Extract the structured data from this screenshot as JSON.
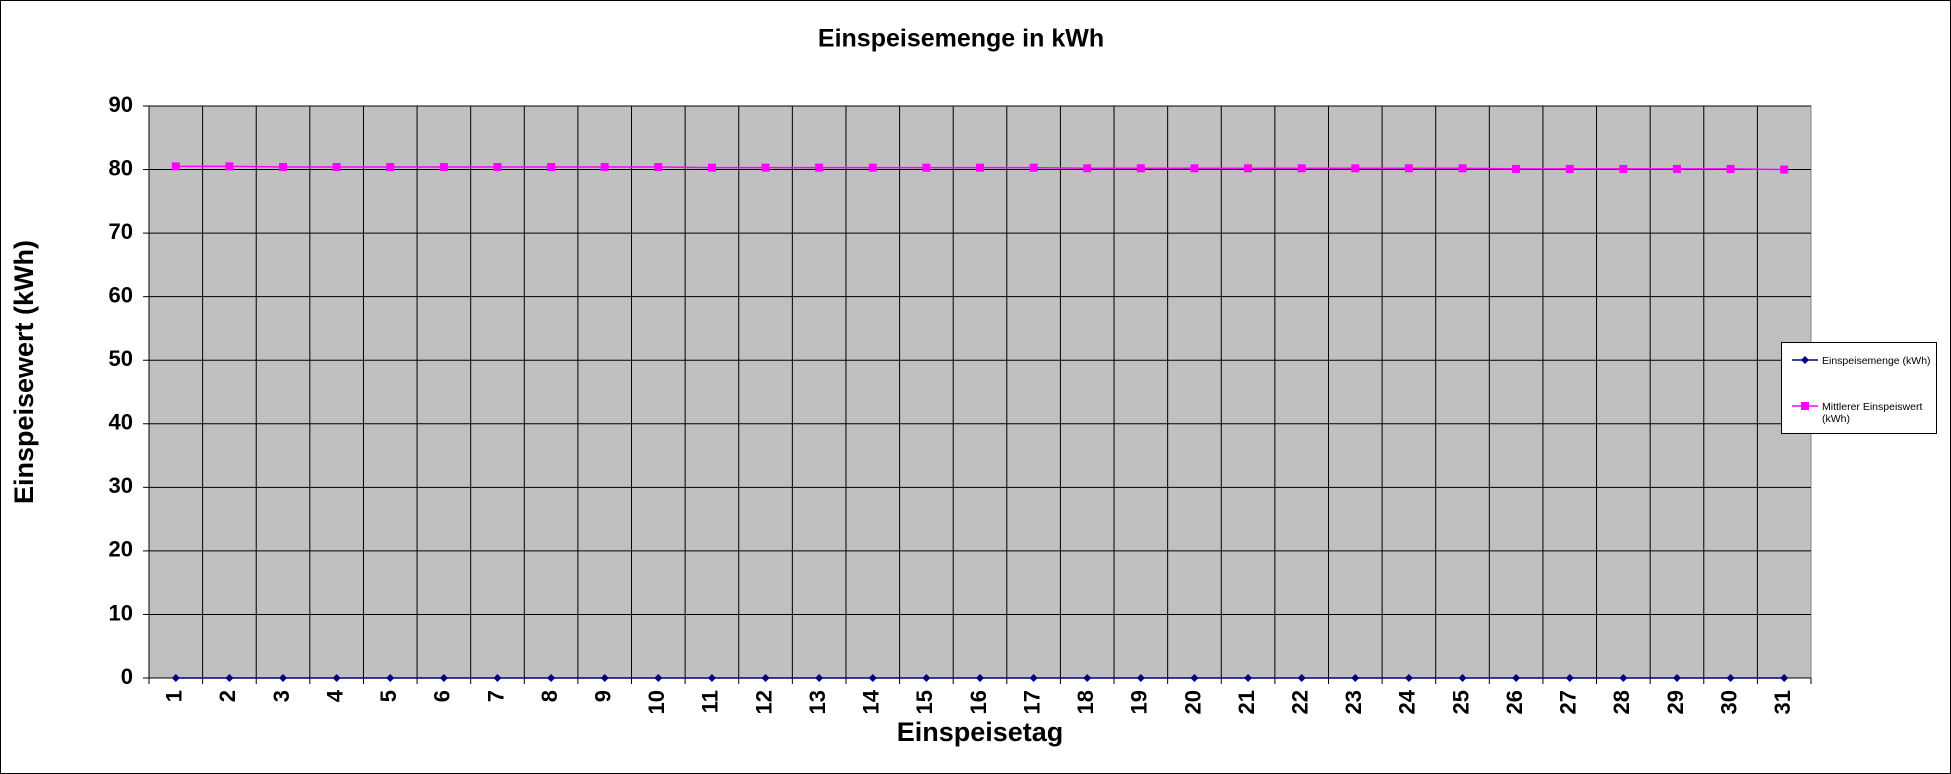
{
  "chart_data": {
    "type": "line",
    "title": "Einspeisemenge in kWh",
    "xlabel": "Einspeisetag",
    "ylabel": "Einspeisewert  (kWh)",
    "categories": [
      "1",
      "2",
      "3",
      "4",
      "5",
      "6",
      "7",
      "8",
      "9",
      "10",
      "11",
      "12",
      "13",
      "14",
      "15",
      "16",
      "17",
      "18",
      "19",
      "20",
      "21",
      "22",
      "23",
      "24",
      "25",
      "26",
      "27",
      "28",
      "29",
      "30",
      "31"
    ],
    "series": [
      {
        "name": "Einspeisemenge (kWh)",
        "color": "#000080",
        "marker": "diamond",
        "values": [
          0,
          0,
          0,
          0,
          0,
          0,
          0,
          0,
          0,
          0,
          0,
          0,
          0,
          0,
          0,
          0,
          0,
          0,
          0,
          0,
          0,
          0,
          0,
          0,
          0,
          0,
          0,
          0,
          0,
          0,
          0
        ]
      },
      {
        "name": "Mittlerer Einspeiswert (kWh)",
        "color": "#ff00ff",
        "marker": "square",
        "values": [
          80.5,
          80.5,
          80.4,
          80.4,
          80.4,
          80.4,
          80.4,
          80.4,
          80.4,
          80.4,
          80.3,
          80.3,
          80.3,
          80.3,
          80.3,
          80.3,
          80.3,
          80.2,
          80.2,
          80.2,
          80.2,
          80.2,
          80.2,
          80.2,
          80.2,
          80.1,
          80.1,
          80.1,
          80.1,
          80.1,
          80.0
        ]
      }
    ],
    "ylim": [
      0,
      90
    ],
    "yticks": [
      0,
      10,
      20,
      30,
      40,
      50,
      60,
      70,
      80,
      90
    ],
    "grid": true,
    "plot_background": "#c0c0c0",
    "legend": "right"
  }
}
